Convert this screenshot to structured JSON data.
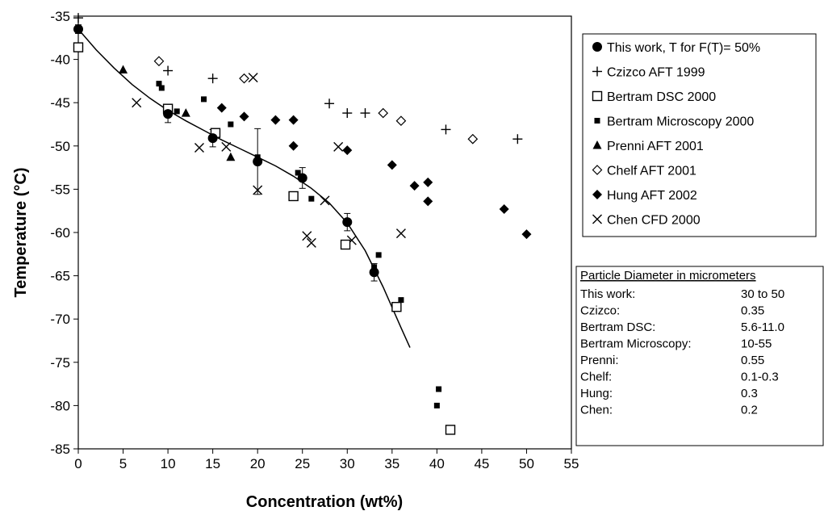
{
  "chart_data": {
    "type": "scatter",
    "xlabel": "Concentration (wt%)",
    "ylabel": "Temperature (°C)",
    "xlim": [
      0,
      55
    ],
    "ylim": [
      -85,
      -35
    ],
    "x_ticks": [
      "0",
      "5",
      "10",
      "15",
      "20",
      "25",
      "30",
      "35",
      "40",
      "45",
      "50",
      "55"
    ],
    "y_ticks": [
      "-35",
      "-40",
      "-45",
      "-50",
      "-55",
      "-60",
      "-65",
      "-70",
      "-75",
      "-80",
      "-85"
    ],
    "grid": false,
    "legend_position": "top-right",
    "series": [
      {
        "name": "This work, T for F(T)= 50%",
        "marker": "filled-circle",
        "x": [
          0,
          10,
          15,
          20,
          25,
          30,
          33
        ],
        "y": [
          -36.5,
          -46.3,
          -49.1,
          -51.8,
          -53.7,
          -58.8,
          -64.6
        ],
        "err": [
          0.5,
          1.0,
          1.0,
          3.8,
          1.2,
          1.0,
          1.0
        ]
      },
      {
        "name": "Czizco AFT 1999",
        "marker": "plus",
        "x": [
          0,
          10,
          15,
          28,
          30,
          32,
          41,
          49
        ],
        "y": [
          -35.2,
          -41.3,
          -42.2,
          -45.1,
          -46.2,
          -46.2,
          -48.1,
          -49.2
        ]
      },
      {
        "name": "Bertram DSC 2000",
        "marker": "open-square",
        "x": [
          0,
          10,
          15.3,
          24,
          29.8,
          35.5,
          41.5
        ],
        "y": [
          -38.6,
          -45.7,
          -48.5,
          -55.8,
          -61.4,
          -68.6,
          -82.8
        ]
      },
      {
        "name": "Bertram Microscopy 2000",
        "marker": "small-filled-square",
        "x": [
          9,
          9.3,
          10,
          11,
          14,
          17,
          20,
          24.5,
          26,
          33,
          33.5,
          36,
          40,
          40.2
        ],
        "y": [
          -42.8,
          -43.3,
          -45.7,
          -46.0,
          -44.6,
          -47.5,
          -51.3,
          -53.1,
          -56.1,
          -64.0,
          -62.6,
          -67.8,
          -80.0,
          -78.1
        ]
      },
      {
        "name": "Prenni AFT 2001",
        "marker": "filled-triangle",
        "x": [
          5,
          12,
          17
        ],
        "y": [
          -41.2,
          -46.2,
          -51.3
        ]
      },
      {
        "name": "Chelf AFT 2001",
        "marker": "open-diamond",
        "x": [
          9,
          18.5,
          34,
          36,
          44
        ],
        "y": [
          -40.2,
          -42.2,
          -46.2,
          -47.1,
          -49.2
        ]
      },
      {
        "name": "Hung AFT 2002",
        "marker": "filled-diamond",
        "x": [
          10,
          16,
          18.5,
          22,
          24,
          24,
          30,
          35,
          37.5,
          39,
          39,
          47.5,
          50
        ],
        "y": [
          -46.0,
          -45.6,
          -46.6,
          -47.0,
          -47.0,
          -50.0,
          -50.5,
          -52.2,
          -54.6,
          -54.2,
          -56.4,
          -57.3,
          -60.2
        ]
      },
      {
        "name": "Chen CFD 2000",
        "marker": "x-cross",
        "x": [
          6.5,
          13.5,
          16.5,
          19.5,
          20,
          25.5,
          26,
          27.5,
          29,
          30.5,
          36
        ],
        "y": [
          -45.0,
          -50.2,
          -50.1,
          -42.1,
          -55.1,
          -60.4,
          -61.2,
          -56.3,
          -50.1,
          -60.9,
          -60.1
        ]
      }
    ],
    "fit_curve": {
      "x": [
        0,
        2,
        4,
        6,
        8,
        10,
        12,
        14,
        16,
        18,
        20,
        22,
        24,
        26,
        28,
        30,
        32,
        34,
        36,
        37
      ],
      "y": [
        -36.5,
        -38.9,
        -41.0,
        -42.9,
        -44.5,
        -45.9,
        -47.1,
        -48.2,
        -49.3,
        -50.3,
        -51.3,
        -52.3,
        -53.5,
        -54.9,
        -56.6,
        -58.9,
        -62.1,
        -66.3,
        -71.0,
        -73.3
      ]
    },
    "legend": {
      "entries": [
        "This work, T for F(T)= 50%",
        "Czizco AFT 1999",
        "Bertram DSC 2000",
        "Bertram Microscopy 2000",
        "Prenni AFT 2001",
        "Chelf AFT 2001",
        "Hung AFT 2002",
        "Chen CFD 2000"
      ]
    },
    "diameter_table": {
      "title": "Particle Diameter in micrometers",
      "rows": [
        {
          "label": "This work:",
          "value": "30 to 50"
        },
        {
          "label": "Czizco:",
          "value": "0.35"
        },
        {
          "label": "Bertram DSC:",
          "value": "5.6-11.0"
        },
        {
          "label": "Bertram Microscopy:",
          "value": "10-55"
        },
        {
          "label": "Prenni:",
          "value": "0.55"
        },
        {
          "label": "Chelf:",
          "value": "0.1-0.3"
        },
        {
          "label": "Hung:",
          "value": "0.3"
        },
        {
          "label": "Chen:",
          "value": "0.2"
        }
      ]
    },
    "colors": {
      "ink": "#000000",
      "background": "#ffffff"
    }
  }
}
